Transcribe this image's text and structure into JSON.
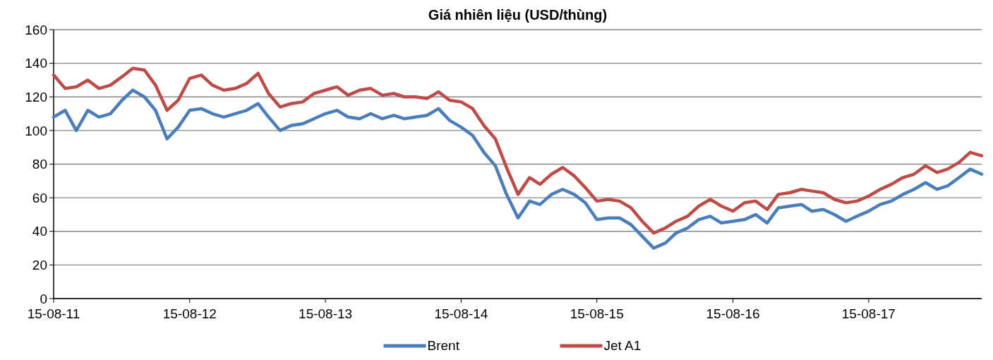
{
  "chart_data": {
    "type": "line",
    "title": "Giá nhiên liệu (USD/thùng)",
    "x": [
      "2011-08-15",
      "2011-09-15",
      "2011-10-15",
      "2011-11-15",
      "2011-12-15",
      "2012-01-15",
      "2012-02-15",
      "2012-03-15",
      "2012-04-15",
      "2012-05-15",
      "2012-06-15",
      "2012-07-15",
      "2012-08-15",
      "2012-09-15",
      "2012-10-15",
      "2012-11-15",
      "2012-12-15",
      "2013-01-15",
      "2013-02-15",
      "2013-03-15",
      "2013-04-15",
      "2013-05-15",
      "2013-06-15",
      "2013-07-15",
      "2013-08-15",
      "2013-09-15",
      "2013-10-15",
      "2013-11-15",
      "2013-12-15",
      "2014-01-15",
      "2014-02-15",
      "2014-03-15",
      "2014-04-15",
      "2014-05-15",
      "2014-06-15",
      "2014-07-15",
      "2014-08-15",
      "2014-09-15",
      "2014-10-15",
      "2014-11-15",
      "2014-12-15",
      "2015-01-15",
      "2015-02-15",
      "2015-03-15",
      "2015-04-15",
      "2015-05-15",
      "2015-06-15",
      "2015-07-15",
      "2015-08-15",
      "2015-09-15",
      "2015-10-15",
      "2015-11-15",
      "2015-12-15",
      "2016-01-15",
      "2016-02-15",
      "2016-03-15",
      "2016-04-15",
      "2016-05-15",
      "2016-06-15",
      "2016-07-15",
      "2016-08-15",
      "2016-09-15",
      "2016-10-15",
      "2016-11-15",
      "2016-12-15",
      "2017-01-15",
      "2017-02-15",
      "2017-03-15",
      "2017-04-15",
      "2017-05-15",
      "2017-06-15",
      "2017-07-15",
      "2017-08-15",
      "2017-09-15",
      "2017-10-15",
      "2017-11-15",
      "2017-12-15",
      "2018-01-15",
      "2018-02-15",
      "2018-03-15",
      "2018-04-15",
      "2018-05-15",
      "2018-06-15"
    ],
    "series": [
      {
        "name": "Brent",
        "color": "#4a7ebb",
        "values": [
          108,
          112,
          100,
          112,
          108,
          110,
          118,
          124,
          120,
          112,
          95,
          102,
          112,
          113,
          110,
          108,
          110,
          112,
          116,
          108,
          100,
          103,
          104,
          107,
          110,
          112,
          108,
          107,
          110,
          107,
          109,
          107,
          108,
          109,
          113,
          106,
          102,
          97,
          87,
          79,
          62,
          48,
          58,
          56,
          62,
          65,
          62,
          57,
          47,
          48,
          48,
          44,
          37,
          30,
          33,
          39,
          42,
          47,
          49,
          45,
          46,
          47,
          50,
          45,
          54,
          55,
          56,
          52,
          53,
          50,
          46,
          49,
          52,
          56,
          58,
          62,
          65,
          69,
          65,
          67,
          72,
          77,
          74
        ]
      },
      {
        "name": "Jet A1",
        "color": "#be4b48",
        "values": [
          133,
          125,
          126,
          130,
          125,
          127,
          132,
          137,
          136,
          127,
          112,
          118,
          131,
          133,
          127,
          124,
          125,
          128,
          134,
          122,
          114,
          116,
          117,
          122,
          124,
          126,
          121,
          124,
          125,
          121,
          122,
          120,
          120,
          119,
          123,
          118,
          117,
          113,
          103,
          95,
          78,
          62,
          72,
          68,
          74,
          78,
          73,
          66,
          58,
          59,
          58,
          54,
          46,
          39,
          42,
          46,
          49,
          55,
          59,
          55,
          52,
          57,
          58,
          53,
          62,
          63,
          65,
          64,
          63,
          59,
          57,
          58,
          61,
          65,
          68,
          72,
          74,
          79,
          75,
          77,
          81,
          87,
          85
        ]
      }
    ],
    "xlim": [
      "2011-08-15",
      "2018-06-15"
    ],
    "xticks": [
      {
        "value": "2011-08-15",
        "label": "15-08-11"
      },
      {
        "value": "2012-08-15",
        "label": "15-08-12"
      },
      {
        "value": "2013-08-15",
        "label": "15-08-13"
      },
      {
        "value": "2014-08-15",
        "label": "15-08-14"
      },
      {
        "value": "2015-08-15",
        "label": "15-08-15"
      },
      {
        "value": "2016-08-15",
        "label": "15-08-16"
      },
      {
        "value": "2017-08-15",
        "label": "15-08-17"
      }
    ],
    "ylim": [
      0,
      160
    ],
    "yticks": [
      0,
      20,
      40,
      60,
      80,
      100,
      120,
      140,
      160
    ],
    "grid": "y",
    "legend": "bottom",
    "line_style": "solid"
  }
}
